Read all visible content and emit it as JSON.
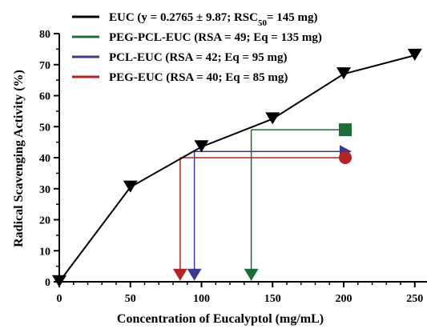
{
  "colors": {
    "axis": "#000000",
    "euc": "#000000",
    "peg_pcl_euc": "#1e6b3a",
    "pcl_euc": "#3b3a8f",
    "peg_euc": "#b32424"
  },
  "chart_data": {
    "type": "line",
    "xlabel": "Concentration of Eucalyptol (mg/mL)",
    "ylabel": "Radical Scavenging Activity (%)",
    "xlim": [
      0,
      270
    ],
    "ylim": [
      0,
      80
    ],
    "x_ticks": [
      0,
      50,
      100,
      150,
      200,
      250
    ],
    "y_ticks": [
      0,
      10,
      20,
      30,
      40,
      50,
      60,
      70,
      80
    ],
    "grid": false,
    "legend_position": "top-left",
    "series": [
      {
        "name": "EUC",
        "marker": "triangle-down",
        "color_key": "euc",
        "x": [
          0,
          50,
          100,
          150,
          200,
          250
        ],
        "y": [
          0,
          30.5,
          43.5,
          52.5,
          67,
          73
        ]
      }
    ],
    "annotations": [
      {
        "name": "PEG-PCL-EUC",
        "rsa": 49,
        "eq": 135,
        "end_x": 200,
        "marker": "square",
        "color_key": "peg_pcl_euc"
      },
      {
        "name": "PCL-EUC",
        "rsa": 42,
        "eq": 95,
        "end_x": 200,
        "marker": "triangle-right",
        "color_key": "pcl_euc"
      },
      {
        "name": "PEG-EUC",
        "rsa": 40,
        "eq": 85,
        "end_x": 200,
        "marker": "circle",
        "color_key": "peg_euc"
      }
    ],
    "legend": [
      {
        "color_key": "euc",
        "prefix": "EUC (y = 0.2765 ± 9.87; RSC",
        "sub": "50",
        "suffix": "= 145 mg)"
      },
      {
        "color_key": "peg_pcl_euc",
        "prefix": "PEG-PCL-EUC (RSA = 49; Eq = 135 mg)",
        "sub": "",
        "suffix": ""
      },
      {
        "color_key": "pcl_euc",
        "prefix": "PCL-EUC (RSA = 42; Eq = 95 mg)",
        "sub": "",
        "suffix": ""
      },
      {
        "color_key": "peg_euc",
        "prefix": "PEG-EUC (RSA = 40; Eq = 85 mg)",
        "sub": "",
        "suffix": ""
      }
    ]
  }
}
